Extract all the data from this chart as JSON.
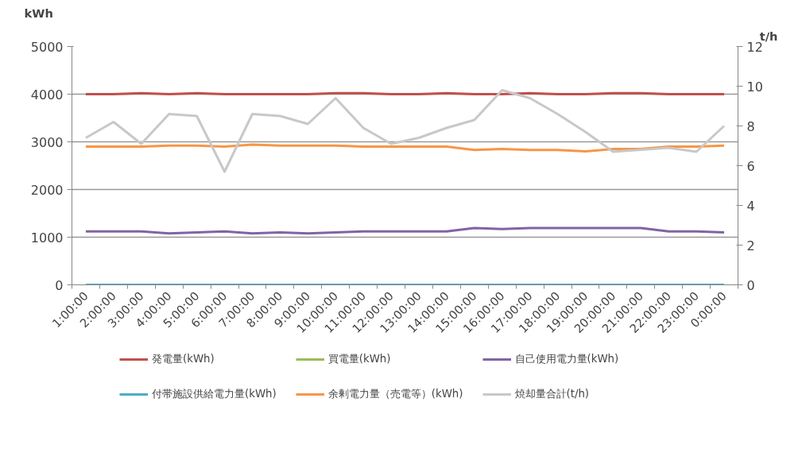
{
  "chart_data": {
    "type": "line",
    "categories": [
      "1:00:00",
      "2:00:00",
      "3:00:00",
      "4:00:00",
      "5:00:00",
      "6:00:00",
      "7:00:00",
      "8:00:00",
      "9:00:00",
      "10:00:00",
      "11:00:00",
      "12:00:00",
      "13:00:00",
      "14:00:00",
      "15:00:00",
      "16:00:00",
      "17:00:00",
      "18:00:00",
      "19:00:00",
      "20:00:00",
      "21:00:00",
      "22:00:00",
      "23:00:00",
      "0:00:00"
    ],
    "ylabel": "kWh",
    "y2label": "t/h",
    "ylim": [
      0,
      5000
    ],
    "yticks": [
      0,
      1000,
      2000,
      3000,
      4000,
      5000
    ],
    "y2lim": [
      0,
      12
    ],
    "y2ticks": [
      0,
      2,
      4,
      6,
      8,
      10,
      12
    ],
    "grid": "y",
    "legend": "bottom",
    "series": [
      {
        "name": "発電量(kWh)",
        "color": "#c0504d",
        "values": [
          4000,
          4000,
          4020,
          4000,
          4020,
          4000,
          4000,
          4000,
          4000,
          4020,
          4020,
          4000,
          4000,
          4020,
          4000,
          4000,
          4020,
          4000,
          4000,
          4020,
          4020,
          4000,
          4000,
          4000
        ]
      },
      {
        "name": "買電量(kWh)",
        "color": "#9bbb59",
        "values": [
          null,
          null,
          null,
          null,
          null,
          null,
          null,
          null,
          null,
          null,
          null,
          null,
          null,
          null,
          null,
          null,
          null,
          null,
          null,
          null,
          null,
          null,
          null,
          null
        ]
      },
      {
        "name": "自己使用電力量(kWh)",
        "color": "#8064a2",
        "values": [
          1120,
          1120,
          1120,
          1080,
          1100,
          1120,
          1080,
          1100,
          1080,
          1100,
          1120,
          1120,
          1120,
          1120,
          1190,
          1170,
          1190,
          1190,
          1190,
          1190,
          1190,
          1120,
          1120,
          1100
        ]
      },
      {
        "name": "付帯施設供給電力量(kWh)",
        "color": "#4bacc6",
        "values": [
          0,
          0,
          0,
          0,
          0,
          0,
          0,
          0,
          0,
          0,
          0,
          0,
          0,
          0,
          0,
          0,
          0,
          0,
          0,
          0,
          0,
          0,
          0,
          0
        ]
      },
      {
        "name": "余剰電力量（売電等）(kWh)",
        "color": "#f79646",
        "values": [
          2900,
          2900,
          2900,
          2920,
          2920,
          2900,
          2940,
          2920,
          2920,
          2920,
          2900,
          2900,
          2900,
          2900,
          2830,
          2850,
          2830,
          2830,
          2800,
          2850,
          2850,
          2900,
          2900,
          2920
        ]
      },
      {
        "name": "焼却量合計(t/h)",
        "color": "#c8c8c8",
        "axis": "y2",
        "values": [
          7.4,
          8.2,
          7.1,
          8.6,
          8.5,
          5.7,
          8.6,
          8.5,
          8.1,
          9.4,
          7.9,
          7.1,
          7.4,
          7.9,
          8.3,
          9.8,
          9.4,
          8.6,
          7.7,
          6.7,
          6.8,
          6.9,
          6.7,
          8.0
        ]
      }
    ]
  }
}
